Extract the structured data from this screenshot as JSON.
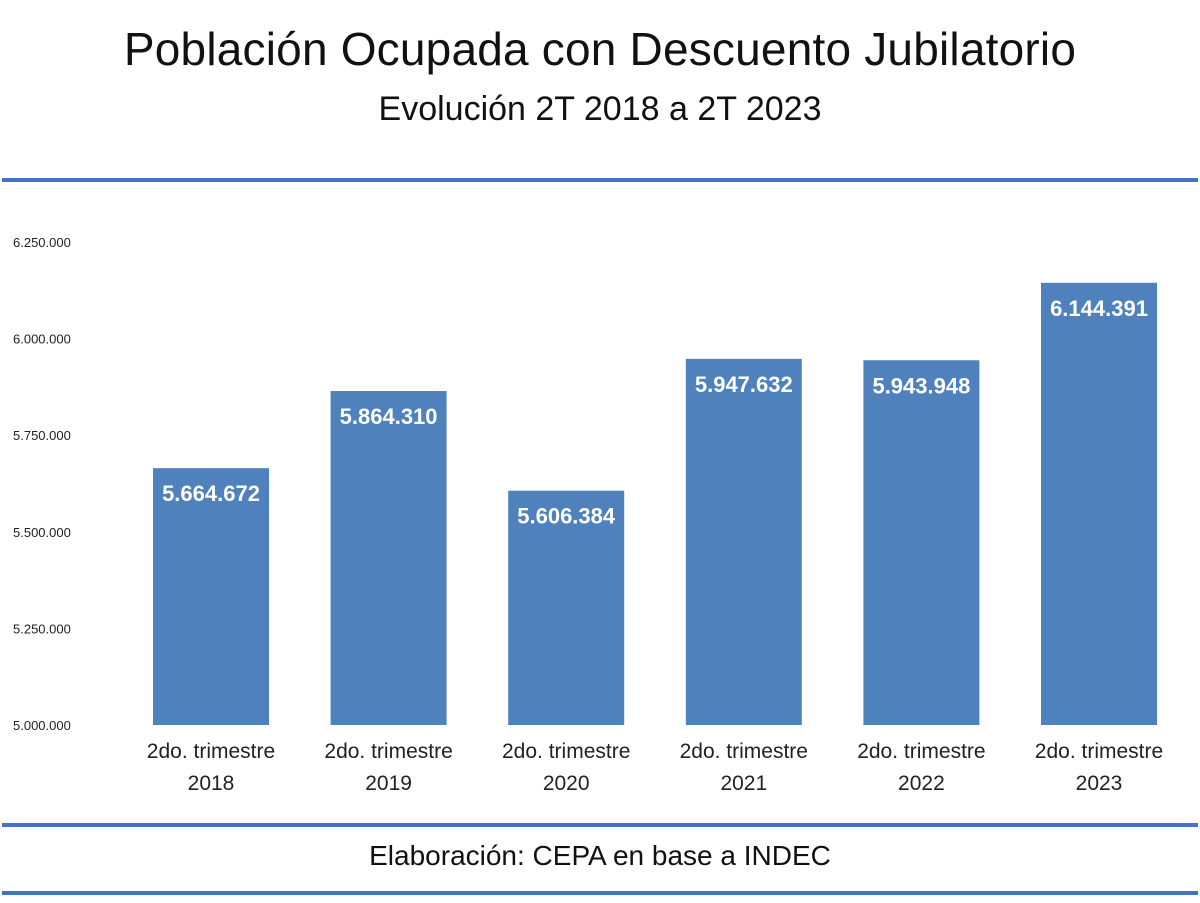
{
  "title": "Población Ocupada con Descuento Jubilatorio",
  "subtitle": "Evolución 2T 2018 a 2T 2023",
  "source": "Elaboración: CEPA en base a INDEC",
  "colors": {
    "bar": "#4f81bd",
    "rule": "#4472c4",
    "label": "#ffffff"
  },
  "chart_data": {
    "type": "bar",
    "title": "Población Ocupada con Descuento Jubilatorio",
    "subtitle": "Evolución 2T 2018 a 2T 2023",
    "categories": [
      [
        "2do. trimestre",
        "2018"
      ],
      [
        "2do. trimestre",
        "2019"
      ],
      [
        "2do. trimestre",
        "2020"
      ],
      [
        "2do. trimestre",
        "2021"
      ],
      [
        "2do. trimestre",
        "2022"
      ],
      [
        "2do. trimestre",
        "2023"
      ]
    ],
    "values": [
      5664672,
      5864310,
      5606384,
      5947632,
      5943948,
      6144391
    ],
    "value_labels": [
      "5.664.672",
      "5.864.310",
      "5.606.384",
      "5.947.632",
      "5.943.948",
      "6.144.391"
    ],
    "yticks": [
      5000000,
      5250000,
      5500000,
      5750000,
      6000000,
      6250000
    ],
    "ytick_labels": [
      "5.000.000",
      "5.250.000",
      "5.500.000",
      "5.750.000",
      "6.000.000",
      "6.250.000"
    ],
    "ylim": [
      5000000,
      6250000
    ],
    "grid": false,
    "legend": "none",
    "xlabel": "",
    "ylabel": ""
  }
}
